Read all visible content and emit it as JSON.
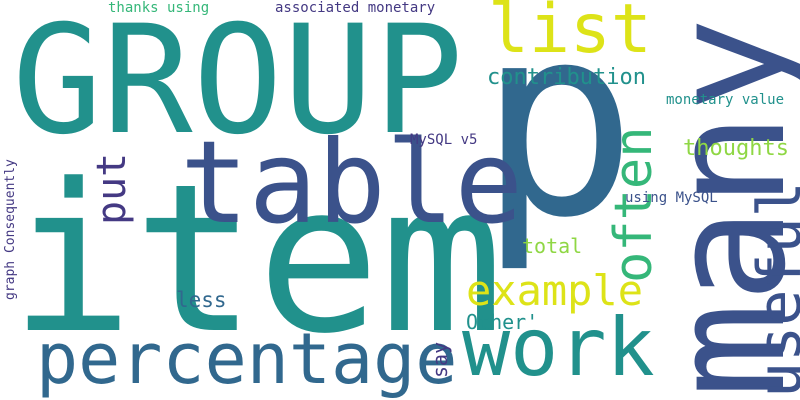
{
  "palette": {
    "background": "#ffffff",
    "teal": "#21918c",
    "navy": "#3b528b",
    "blue": "#31688e",
    "purple": "#443983",
    "green": "#35b779",
    "lime": "#8fd744",
    "yellow": "#dde318"
  },
  "words": {
    "p": "p",
    "item": "item",
    "group": "GROUP",
    "many": "many",
    "table": "table",
    "work": "work",
    "percentage": "percentage",
    "list": "list",
    "useful": "useful",
    "often": "often",
    "example": "example",
    "put": "put",
    "contribution": "contribution",
    "thoughts": "thoughts",
    "total": "total",
    "less": "less",
    "other": "Other'",
    "say": "say",
    "monetary_value": "monetary value",
    "mysql_v5": "MySQL v5",
    "using_mysql": "using MySQL",
    "thanks_using": "thanks using",
    "associated_monetary": "associated monetary",
    "graph_consequently": "graph Consequently"
  }
}
